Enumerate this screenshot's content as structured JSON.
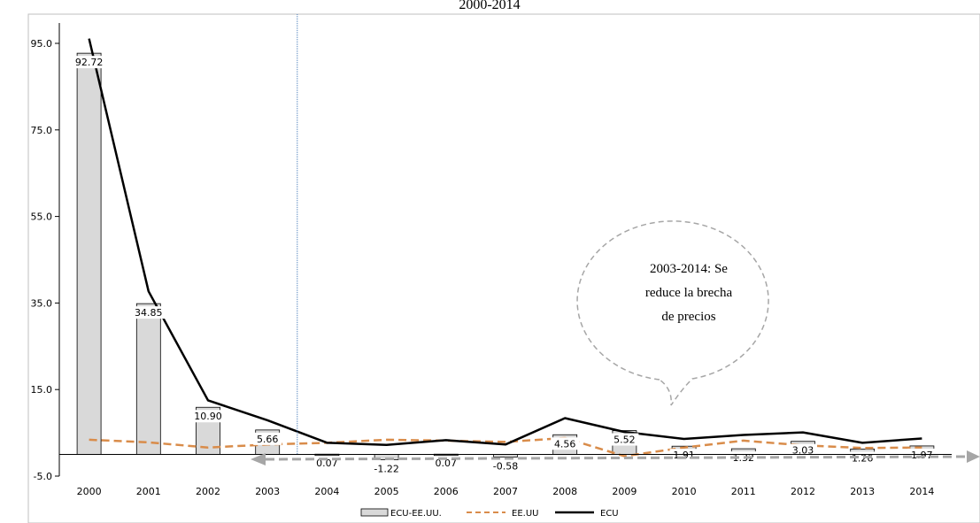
{
  "chart_data": {
    "type": "bar",
    "title": "2000-2014",
    "categories": [
      "2000",
      "2001",
      "2002",
      "2003",
      "2004",
      "2005",
      "2006",
      "2007",
      "2008",
      "2009",
      "2010",
      "2011",
      "2012",
      "2013",
      "2014"
    ],
    "ylim": [
      -5,
      95
    ],
    "yticks": [
      "95.0",
      "75.0",
      "55.0",
      "35.0",
      "15.0",
      "-5.0"
    ],
    "ytick_values": [
      95,
      75,
      55,
      35,
      15,
      -5
    ],
    "series": [
      {
        "name": "ECU-EE.UU.",
        "kind": "bar",
        "color": "#d9d9d9",
        "values": [
          92.72,
          34.85,
          10.9,
          5.66,
          0.07,
          -1.22,
          0.07,
          -0.58,
          4.56,
          5.52,
          1.91,
          1.32,
          3.03,
          1.26,
          1.97
        ],
        "labels": [
          "92.72",
          "34.85",
          "10.90",
          "5.66",
          "0.07",
          "-1.22",
          "0.07",
          "-0.58",
          "4.56",
          "5.52",
          "1.91",
          "1.32",
          "3.03",
          "1.26",
          "1.97"
        ]
      },
      {
        "name": "EE.UU",
        "kind": "line",
        "style": "dashed",
        "color": "#d98c4a",
        "values": [
          3.4,
          2.8,
          1.6,
          2.3,
          2.7,
          3.4,
          3.2,
          2.9,
          3.8,
          -0.4,
          1.6,
          3.2,
          2.1,
          1.5,
          1.6
        ]
      },
      {
        "name": "ECU",
        "kind": "line",
        "style": "solid",
        "color": "#000000",
        "values": [
          96.1,
          37.7,
          12.5,
          7.9,
          2.7,
          2.2,
          3.3,
          2.3,
          8.4,
          5.2,
          3.6,
          4.5,
          5.1,
          2.7,
          3.7
        ]
      }
    ],
    "annotation": {
      "lines": [
        "2003-2014: Se",
        "reduce la brecha",
        "de precios"
      ]
    },
    "divider_after_category": "2003",
    "legend_position": "bottom",
    "grid": false
  }
}
